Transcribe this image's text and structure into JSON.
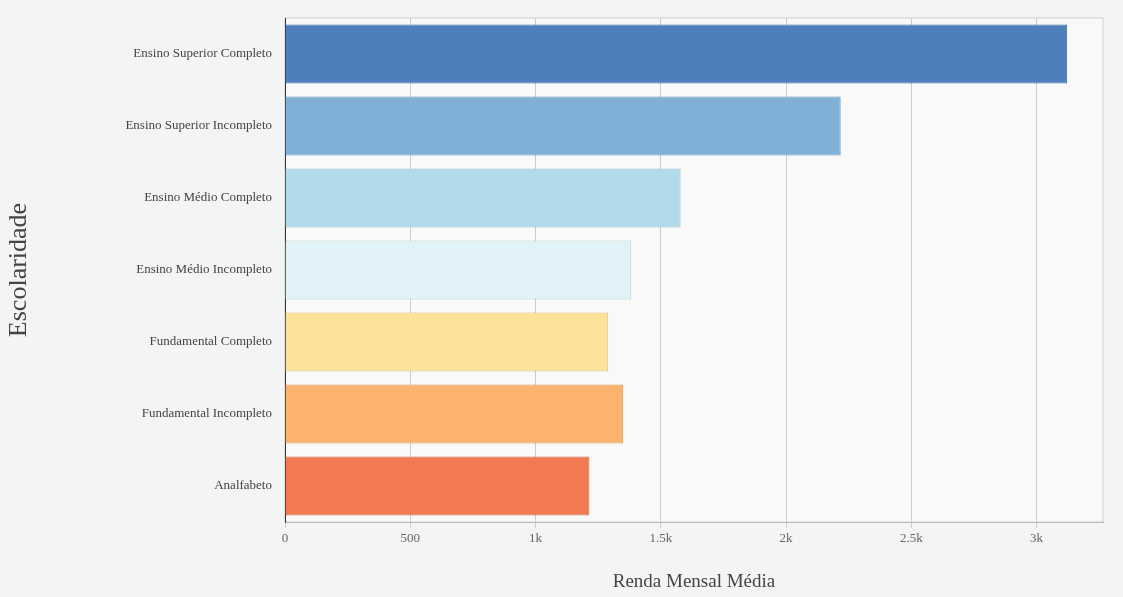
{
  "chart_data": {
    "type": "bar",
    "orientation": "horizontal",
    "xlabel": "Renda Mensal Média",
    "ylabel": "Escolaridade",
    "categories": [
      "Ensino Superior Completo",
      "Ensino Superior Incompleto",
      "Ensino Médio Completo",
      "Ensino Médio Incompleto",
      "Fundamental Completo",
      "Fundamental Incompleto",
      "Analfabeto"
    ],
    "values": [
      3122,
      2218,
      1579,
      1382,
      1290,
      1350,
      1215
    ],
    "colors": [
      "#4e7fbb",
      "#7fb1d6",
      "#b1dbea",
      "#e1f2f8",
      "#fde29a",
      "#fbb36e",
      "#f27a53"
    ],
    "xlim": [
      0,
      3265
    ],
    "xticks": [
      0,
      500,
      {
        "value": 1000,
        "label": "1k"
      },
      {
        "value": 1500,
        "label": "1.5k"
      },
      {
        "value": 2000,
        "label": "2k"
      },
      {
        "value": 2500,
        "label": "2.5k"
      },
      {
        "value": 3000,
        "label": "3k"
      }
    ],
    "grid": "x",
    "legend": false
  }
}
